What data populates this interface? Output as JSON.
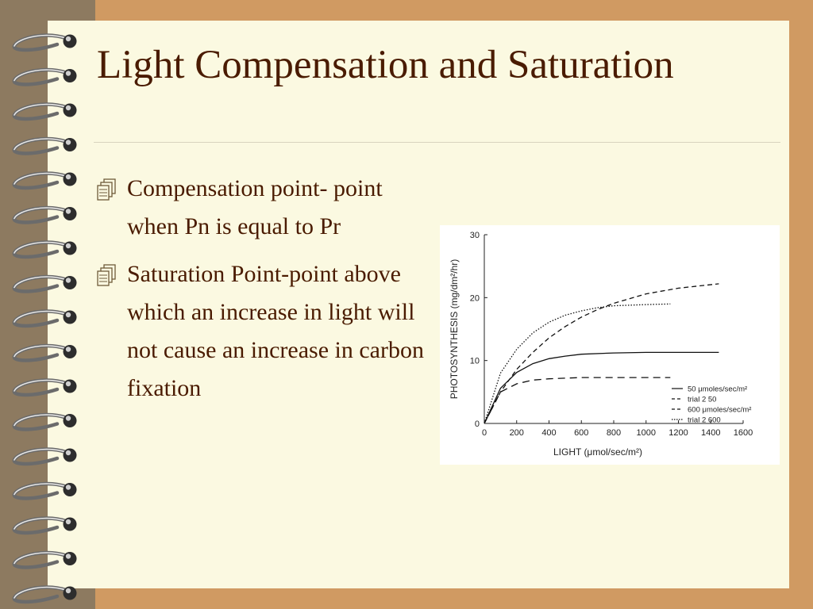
{
  "slide": {
    "title": "Light Compensation and Saturation",
    "bullets": [
      "Compensation point- point when Pn is equal to Pr",
      "Saturation Point-point above which an increase in light will not cause an increase in carbon fixation"
    ],
    "bullet_icon": "notebook-icon"
  },
  "theme": {
    "paper": "#fbf9e1",
    "background": "#d09a62",
    "binding_strip": "#8d7a60",
    "text": "#4a1b00"
  },
  "chart_data": {
    "type": "line",
    "xlabel": "LIGHT (μmol/sec/m²)",
    "ylabel": "PHOTOSYNTHESIS (mg/dm²/hr)",
    "xlim": [
      0,
      1600
    ],
    "ylim": [
      0,
      30
    ],
    "x_ticks": [
      "0",
      "200",
      "400",
      "600",
      "800",
      "1000",
      "1200",
      "1400",
      "1600"
    ],
    "y_ticks": [
      "0",
      "10",
      "20",
      "30"
    ],
    "legend_position": "bottom-right",
    "series": [
      {
        "name": "50 μmoles/sec/m²",
        "style": "solid",
        "x": [
          0,
          100,
          200,
          300,
          400,
          500,
          600,
          800,
          1000,
          1200,
          1450
        ],
        "y": [
          0,
          5.6,
          8.1,
          9.5,
          10.3,
          10.7,
          11.0,
          11.2,
          11.3,
          11.3,
          11.3
        ]
      },
      {
        "name": "trial 2 50",
        "style": "longdash",
        "x": [
          0,
          100,
          200,
          300,
          400,
          500,
          600,
          800,
          1000,
          1150
        ],
        "y": [
          0,
          5.0,
          6.3,
          6.9,
          7.1,
          7.2,
          7.3,
          7.3,
          7.3,
          7.3
        ]
      },
      {
        "name": "600 μmoles/sec/m²",
        "style": "dash",
        "x": [
          0,
          100,
          200,
          300,
          400,
          500,
          600,
          700,
          800,
          1000,
          1200,
          1450
        ],
        "y": [
          0,
          5.0,
          8.6,
          11.3,
          13.6,
          15.4,
          16.9,
          18.1,
          19.1,
          20.6,
          21.5,
          22.2
        ]
      },
      {
        "name": "trial 2 600",
        "style": "dotted",
        "x": [
          0,
          100,
          200,
          300,
          400,
          500,
          600,
          700,
          800,
          1000,
          1150
        ],
        "y": [
          0,
          8.0,
          11.8,
          14.4,
          16.1,
          17.2,
          17.9,
          18.4,
          18.7,
          18.9,
          19.0
        ]
      }
    ]
  }
}
